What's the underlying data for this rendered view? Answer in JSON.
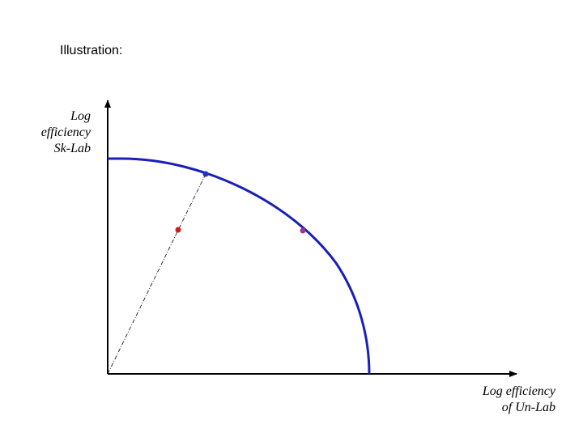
{
  "heading": "Illustration:",
  "y_axis_label": {
    "line1": "Log",
    "line2": "efficiency",
    "line3": "Sk-Lab"
  },
  "x_axis_label": {
    "line1": "Log efficiency",
    "line2": "of Un-Lab"
  },
  "colors": {
    "frontier": "#1a1fb8",
    "axes": "#000000",
    "ray": "#000000",
    "point_on_frontier": "#2030c8",
    "point_inside": "#d01818",
    "point_tangent": "#a0309a"
  }
}
